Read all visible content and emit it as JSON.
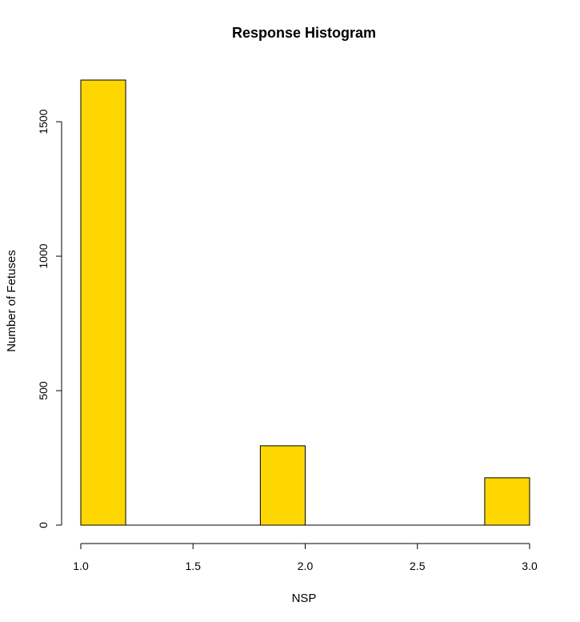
{
  "chart_data": {
    "type": "bar",
    "title": "Response Histogram",
    "xlabel": "NSP",
    "ylabel": "Number of Fetuses",
    "bar_color": "#FFD700",
    "bins": [
      {
        "x0": 1.0,
        "x1": 1.2,
        "count": 1655
      },
      {
        "x0": 1.2,
        "x1": 1.4,
        "count": 0
      },
      {
        "x0": 1.4,
        "x1": 1.6,
        "count": 0
      },
      {
        "x0": 1.6,
        "x1": 1.8,
        "count": 0
      },
      {
        "x0": 1.8,
        "x1": 2.0,
        "count": 295
      },
      {
        "x0": 2.0,
        "x1": 2.2,
        "count": 0
      },
      {
        "x0": 2.2,
        "x1": 2.4,
        "count": 0
      },
      {
        "x0": 2.4,
        "x1": 2.6,
        "count": 0
      },
      {
        "x0": 2.6,
        "x1": 2.8,
        "count": 0
      },
      {
        "x0": 2.8,
        "x1": 3.0,
        "count": 176
      }
    ],
    "xlim": [
      1.0,
      3.0
    ],
    "ylim": [
      0,
      1655
    ],
    "xticks": [
      "1.0",
      "1.5",
      "2.0",
      "2.5",
      "3.0"
    ],
    "yticks": [
      "0",
      "500",
      "1000",
      "1500"
    ],
    "grid": false
  }
}
